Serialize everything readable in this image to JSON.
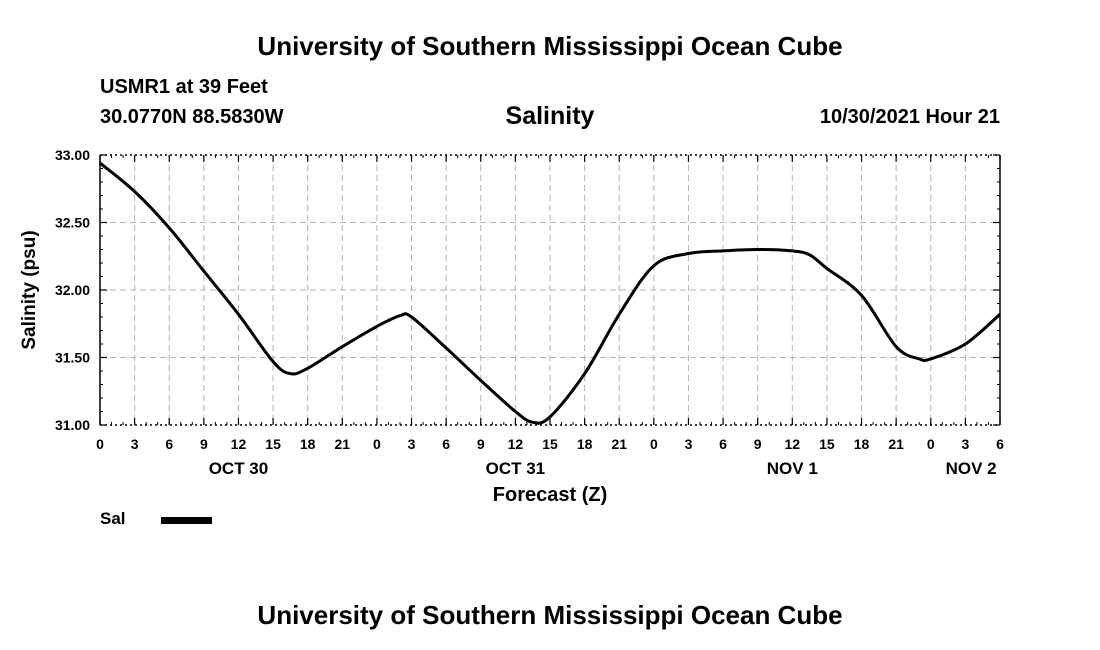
{
  "page": {
    "title_top": "University of Southern Mississippi Ocean Cube",
    "title_bottom": "University of Southern Mississippi Ocean Cube",
    "station": "USMR1 at 39 Feet",
    "coords": "30.0770N  88.5830W",
    "variable": "Salinity",
    "timestamp": "10/30/2021 Hour 21"
  },
  "legend": {
    "label": "Sal",
    "color": "#000000"
  },
  "chart_data": {
    "type": "line",
    "title": "Salinity",
    "xlabel": "Forecast (Z)",
    "ylabel": "Salinity (psu)",
    "xlim": [
      0,
      78
    ],
    "ylim": [
      31.0,
      33.0
    ],
    "yticks": [
      "31.00",
      "31.50",
      "32.00",
      "32.50",
      "33.00"
    ],
    "ytick_values": [
      31.0,
      31.5,
      32.0,
      32.5,
      33.0
    ],
    "xticks": [
      0,
      3,
      6,
      9,
      12,
      15,
      18,
      21,
      24,
      27,
      30,
      33,
      36,
      39,
      42,
      45,
      48,
      51,
      54,
      57,
      60,
      63,
      66,
      69,
      72,
      75,
      78
    ],
    "xtick_labels": [
      "0",
      "3",
      "6",
      "9",
      "12",
      "15",
      "18",
      "21",
      "0",
      "3",
      "6",
      "9",
      "12",
      "15",
      "18",
      "21",
      "0",
      "3",
      "6",
      "9",
      "12",
      "15",
      "18",
      "21",
      "0",
      "3",
      "6"
    ],
    "day_labels": [
      {
        "label": "OCT 30",
        "x": 12
      },
      {
        "label": "OCT 31",
        "x": 36
      },
      {
        "label": "NOV 1",
        "x": 60
      },
      {
        "label": "NOV 2",
        "x": 75.5
      }
    ],
    "grid": true,
    "series": [
      {
        "name": "Sal",
        "x": [
          0,
          3,
          6,
          9,
          12,
          15,
          16.5,
          18,
          21,
          24,
          26,
          27,
          30,
          33,
          36,
          37.5,
          39,
          42,
          45,
          48,
          51,
          54,
          57,
          60,
          61.5,
          63,
          66,
          69,
          71,
          72,
          75,
          78
        ],
        "values": [
          32.94,
          32.73,
          32.46,
          32.14,
          31.82,
          31.47,
          31.38,
          31.42,
          31.58,
          31.73,
          31.81,
          31.8,
          31.57,
          31.33,
          31.1,
          31.02,
          31.06,
          31.38,
          31.82,
          32.18,
          32.27,
          32.29,
          32.3,
          32.29,
          32.26,
          32.16,
          31.96,
          31.58,
          31.49,
          31.49,
          31.6,
          31.82
        ]
      }
    ]
  }
}
